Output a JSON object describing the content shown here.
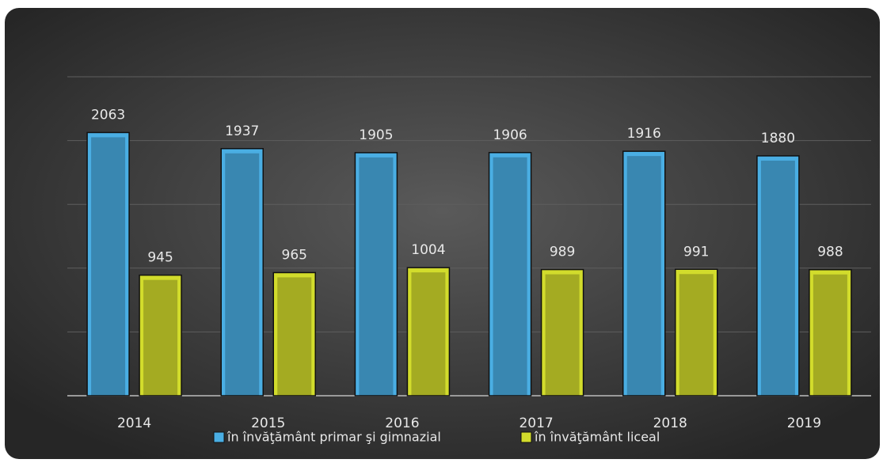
{
  "chart_data": {
    "type": "bar",
    "categories": [
      "2014",
      "2015",
      "2016",
      "2017",
      "2018",
      "2019"
    ],
    "series": [
      {
        "name": "în învăţământ primar şi gimnazial",
        "color": "#4aaee3",
        "values": [
          2063,
          1937,
          1905,
          1906,
          1916,
          1880
        ]
      },
      {
        "name": "în învăţământ liceal",
        "color": "#d2dc2c",
        "values": [
          945,
          965,
          1004,
          989,
          991,
          988
        ]
      }
    ],
    "ylim": [
      0,
      2500
    ],
    "yticks": [
      0,
      500,
      1000,
      1500,
      2000,
      2500
    ],
    "grid": true,
    "legend": "bottom"
  }
}
